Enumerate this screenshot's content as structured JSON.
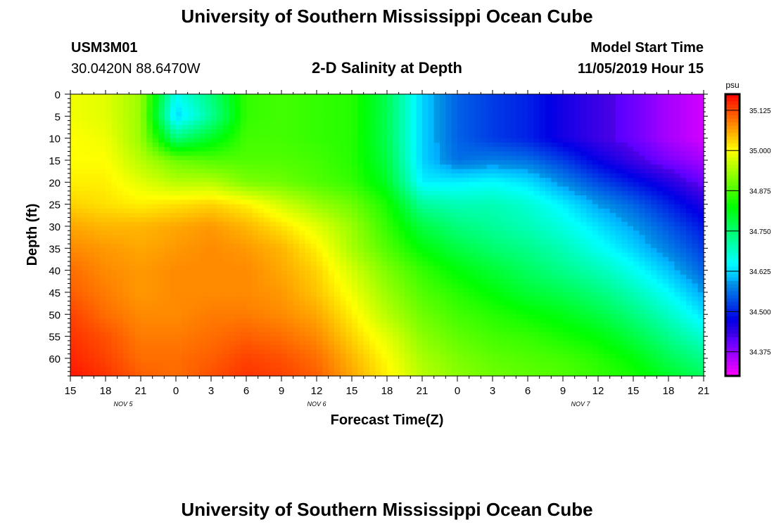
{
  "header": {
    "top_title": "University of Southern Mississippi Ocean Cube",
    "station_id": "USM3M01",
    "coordinates": "30.0420N 88.6470W",
    "model_start_label": "Model Start Time",
    "model_start_value": "11/05/2019 Hour 15",
    "bottom_title": "University of Southern Mississippi Ocean Cube"
  },
  "chart_data": {
    "type": "heatmap",
    "title": "2-D Salinity at Depth",
    "xlabel": "Forecast Time(Z)",
    "ylabel": "Depth (ft)",
    "x_tick_labels": [
      "15",
      "18",
      "21",
      "0",
      "3",
      "6",
      "9",
      "12",
      "15",
      "18",
      "21",
      "0",
      "3",
      "6",
      "9",
      "12",
      "15",
      "18",
      "21"
    ],
    "x_range_hours": [
      0,
      54
    ],
    "date_labels": [
      {
        "label": "NOV 5",
        "hour": 4.5
      },
      {
        "label": "NOV 6",
        "hour": 21
      },
      {
        "label": "NOV 7",
        "hour": 43.5
      }
    ],
    "y_ticks": [
      0,
      5,
      10,
      15,
      20,
      25,
      30,
      35,
      40,
      45,
      50,
      55,
      60
    ],
    "ylim": [
      0,
      64
    ],
    "y_inverted": true,
    "colorbar": {
      "unit": "psu",
      "ticks": [
        "35.125",
        "35.000",
        "34.875",
        "34.750",
        "34.625",
        "34.500",
        "34.375"
      ],
      "tick_values": [
        35.125,
        35.0,
        34.875,
        34.75,
        34.625,
        34.5,
        34.375
      ],
      "range": [
        34.3,
        35.175
      ]
    },
    "depths_ft": [
      0,
      5,
      10,
      15,
      20,
      25,
      30,
      35,
      40,
      45,
      50,
      55,
      60,
      64
    ],
    "hours": [
      0,
      3,
      6,
      9,
      12,
      15,
      18,
      21,
      24,
      27,
      30,
      33,
      36,
      39,
      42,
      45,
      48,
      51,
      54
    ],
    "salinity_psu": [
      [
        34.99,
        34.98,
        34.93,
        34.66,
        34.74,
        34.86,
        34.87,
        34.86,
        34.85,
        34.77,
        34.62,
        34.55,
        34.52,
        34.5,
        34.46,
        34.43,
        34.4,
        34.36,
        34.33
      ],
      [
        34.99,
        34.98,
        34.93,
        34.62,
        34.72,
        34.86,
        34.87,
        34.86,
        34.85,
        34.77,
        34.62,
        34.55,
        34.52,
        34.5,
        34.46,
        34.43,
        34.4,
        34.36,
        34.33
      ],
      [
        35.0,
        34.99,
        34.93,
        34.74,
        34.8,
        34.87,
        34.87,
        34.86,
        34.85,
        34.77,
        34.62,
        34.55,
        34.52,
        34.5,
        34.46,
        34.43,
        34.4,
        34.36,
        34.33
      ],
      [
        35.0,
        35.0,
        34.95,
        34.9,
        34.88,
        34.88,
        34.88,
        34.87,
        34.85,
        34.78,
        34.62,
        34.56,
        34.57,
        34.56,
        34.52,
        34.47,
        34.43,
        34.39,
        34.36
      ],
      [
        35.01,
        35.01,
        34.98,
        34.95,
        34.95,
        34.91,
        34.9,
        34.88,
        34.86,
        34.8,
        34.64,
        34.64,
        34.65,
        34.63,
        34.58,
        34.53,
        34.49,
        34.45,
        34.4
      ],
      [
        35.03,
        35.02,
        35.01,
        35.02,
        35.03,
        35.01,
        34.97,
        34.93,
        34.9,
        34.84,
        34.72,
        34.7,
        34.7,
        34.68,
        34.64,
        34.59,
        34.55,
        34.5,
        34.45
      ],
      [
        35.06,
        35.05,
        35.05,
        35.06,
        35.07,
        35.05,
        35.02,
        34.98,
        34.93,
        34.86,
        34.78,
        34.74,
        34.72,
        34.7,
        34.67,
        34.63,
        34.59,
        34.54,
        34.49
      ],
      [
        35.08,
        35.07,
        35.06,
        35.07,
        35.08,
        35.07,
        35.05,
        35.01,
        34.94,
        34.88,
        34.82,
        34.78,
        34.75,
        34.73,
        34.7,
        34.66,
        34.62,
        34.57,
        34.52
      ],
      [
        35.1,
        35.08,
        35.07,
        35.08,
        35.08,
        35.08,
        35.06,
        35.03,
        34.97,
        34.91,
        34.86,
        34.82,
        34.79,
        34.76,
        34.73,
        34.7,
        34.66,
        34.61,
        34.55
      ],
      [
        35.11,
        35.09,
        35.07,
        35.08,
        35.08,
        35.08,
        35.07,
        35.04,
        34.99,
        34.93,
        34.88,
        34.85,
        34.82,
        34.79,
        34.77,
        34.74,
        34.7,
        34.65,
        34.59
      ],
      [
        35.13,
        35.1,
        35.08,
        35.08,
        35.09,
        35.09,
        35.08,
        35.06,
        35.01,
        34.95,
        34.9,
        34.87,
        34.85,
        34.83,
        34.81,
        34.78,
        34.74,
        34.69,
        34.63
      ],
      [
        35.14,
        35.12,
        35.09,
        35.09,
        35.1,
        35.11,
        35.1,
        35.08,
        35.03,
        34.98,
        34.92,
        34.89,
        34.87,
        34.86,
        34.84,
        34.82,
        34.78,
        34.73,
        34.68
      ],
      [
        35.15,
        35.13,
        35.1,
        35.1,
        35.11,
        35.13,
        35.12,
        35.1,
        35.05,
        35.0,
        34.94,
        34.91,
        34.89,
        34.88,
        34.87,
        34.85,
        34.82,
        34.77,
        34.73
      ],
      [
        35.16,
        35.14,
        35.11,
        35.1,
        35.12,
        35.14,
        35.13,
        35.11,
        35.06,
        35.01,
        34.95,
        34.92,
        34.9,
        34.89,
        34.88,
        34.86,
        34.84,
        34.8,
        34.76
      ]
    ]
  }
}
